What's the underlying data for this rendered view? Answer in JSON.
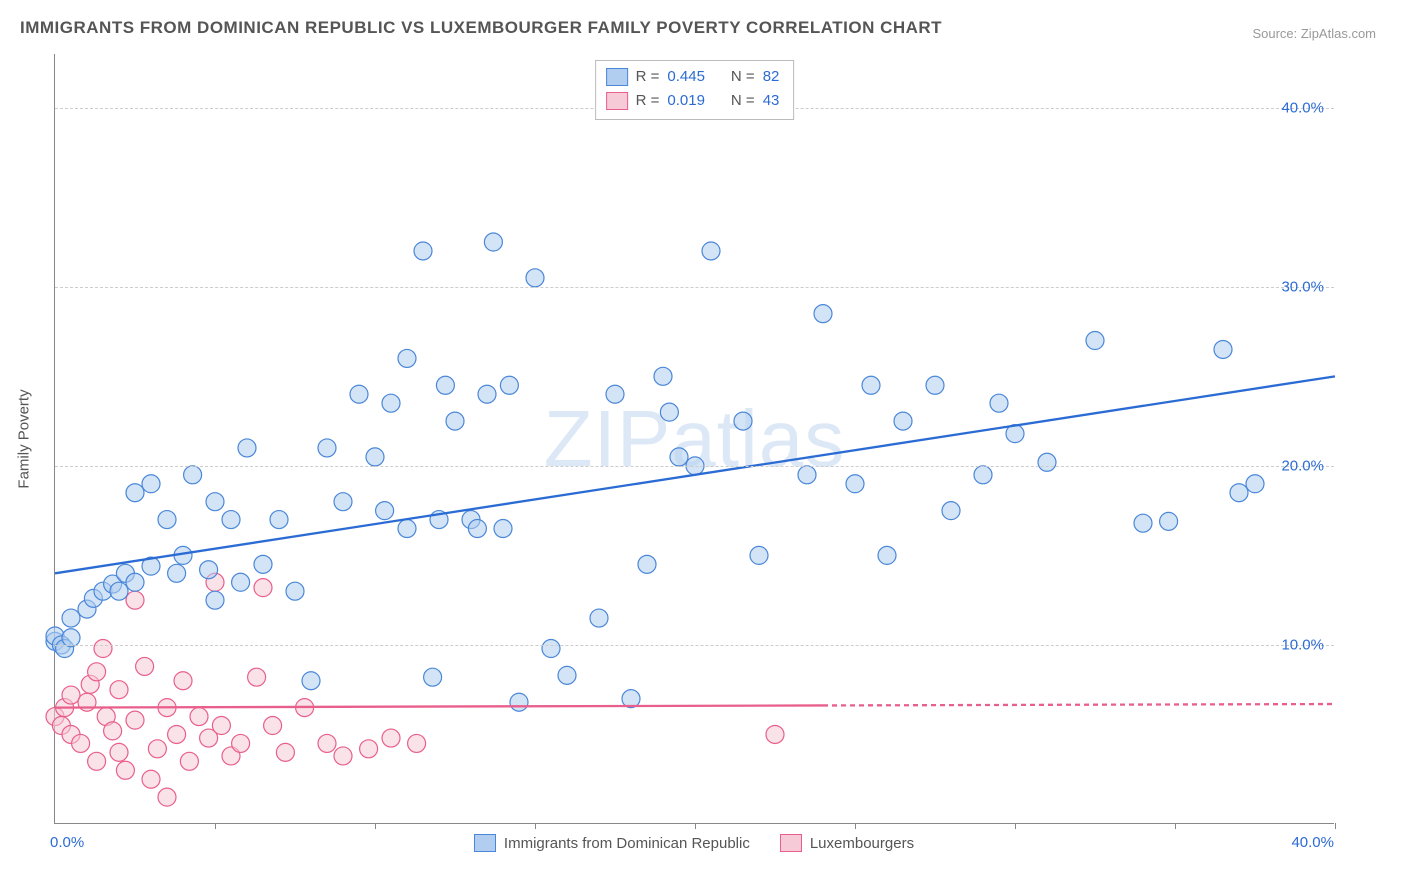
{
  "title": "IMMIGRANTS FROM DOMINICAN REPUBLIC VS LUXEMBOURGER FAMILY POVERTY CORRELATION CHART",
  "source": "Source: ZipAtlas.com",
  "watermark": "ZIPatlas",
  "y_axis_label": "Family Poverty",
  "chart": {
    "type": "scatter",
    "xlim": [
      0,
      40
    ],
    "ylim": [
      0,
      43
    ],
    "x_tick_labels": {
      "min": "0.0%",
      "max": "40.0%"
    },
    "y_ticks": [
      {
        "v": 10,
        "label": "10.0%"
      },
      {
        "v": 20,
        "label": "20.0%"
      },
      {
        "v": 30,
        "label": "30.0%"
      },
      {
        "v": 40,
        "label": "40.0%"
      }
    ],
    "grid_color": "#cccccc",
    "bg": "#ffffff",
    "marker_radius": 9,
    "marker_opacity": 0.55,
    "trend_width": 2.3,
    "x_vticks": [
      5,
      10,
      15,
      20,
      25,
      30,
      35,
      40
    ]
  },
  "series": {
    "blue": {
      "name": "Immigrants from Dominican Republic",
      "fill": "#b1cdf0",
      "stroke": "#4a87d8",
      "line_color": "#2b6bd4",
      "trend": {
        "x1": 0,
        "y1": 14,
        "x2": 40,
        "y2": 25,
        "dash_from_x": null
      },
      "r_label": "R =",
      "r_value": "0.445",
      "n_label": "N =",
      "n_value": "82",
      "points": [
        [
          0.0,
          10.2
        ],
        [
          0.0,
          10.5
        ],
        [
          0.2,
          10.0
        ],
        [
          0.3,
          9.8
        ],
        [
          0.5,
          10.4
        ],
        [
          0.5,
          11.5
        ],
        [
          1.0,
          12.0
        ],
        [
          1.2,
          12.6
        ],
        [
          1.5,
          13.0
        ],
        [
          1.8,
          13.4
        ],
        [
          2.0,
          13.0
        ],
        [
          2.2,
          14.0
        ],
        [
          2.5,
          13.5
        ],
        [
          2.5,
          18.5
        ],
        [
          3.0,
          14.4
        ],
        [
          3.0,
          19.0
        ],
        [
          3.5,
          17.0
        ],
        [
          3.8,
          14.0
        ],
        [
          4.0,
          15.0
        ],
        [
          4.3,
          19.5
        ],
        [
          5.0,
          12.5
        ],
        [
          5.0,
          18.0
        ],
        [
          5.5,
          17.0
        ],
        [
          6.0,
          21.0
        ],
        [
          6.5,
          14.5
        ],
        [
          7.0,
          17.0
        ],
        [
          8.0,
          8.0
        ],
        [
          8.5,
          21.0
        ],
        [
          9.0,
          18.0
        ],
        [
          9.5,
          24.0
        ],
        [
          10.0,
          20.5
        ],
        [
          10.3,
          17.5
        ],
        [
          10.5,
          23.5
        ],
        [
          11.0,
          26.0
        ],
        [
          11.0,
          16.5
        ],
        [
          11.5,
          32.0
        ],
        [
          11.8,
          8.2
        ],
        [
          12.0,
          17.0
        ],
        [
          12.2,
          24.5
        ],
        [
          12.5,
          22.5
        ],
        [
          13.0,
          17.0
        ],
        [
          13.2,
          16.5
        ],
        [
          13.5,
          24.0
        ],
        [
          13.7,
          32.5
        ],
        [
          14.0,
          16.5
        ],
        [
          14.2,
          24.5
        ],
        [
          14.5,
          6.8
        ],
        [
          15.0,
          30.5
        ],
        [
          15.5,
          9.8
        ],
        [
          16.0,
          8.3
        ],
        [
          17.0,
          11.5
        ],
        [
          17.5,
          24.0
        ],
        [
          18.0,
          7.0
        ],
        [
          18.5,
          14.5
        ],
        [
          19.0,
          25.0
        ],
        [
          19.2,
          23.0
        ],
        [
          19.5,
          20.5
        ],
        [
          20.0,
          20.0
        ],
        [
          20.5,
          32.0
        ],
        [
          21.5,
          22.5
        ],
        [
          22.0,
          15.0
        ],
        [
          23.5,
          19.5
        ],
        [
          24.0,
          28.5
        ],
        [
          25.0,
          19.0
        ],
        [
          25.5,
          24.5
        ],
        [
          26.0,
          15.0
        ],
        [
          26.5,
          22.5
        ],
        [
          27.5,
          24.5
        ],
        [
          28.0,
          17.5
        ],
        [
          29.0,
          19.5
        ],
        [
          29.5,
          23.5
        ],
        [
          30.0,
          21.8
        ],
        [
          31.0,
          20.2
        ],
        [
          32.5,
          27.0
        ],
        [
          34.0,
          16.8
        ],
        [
          34.8,
          16.9
        ],
        [
          36.5,
          26.5
        ],
        [
          37.0,
          18.5
        ],
        [
          37.5,
          19.0
        ],
        [
          5.8,
          13.5
        ],
        [
          7.5,
          13.0
        ],
        [
          4.8,
          14.2
        ]
      ]
    },
    "pink": {
      "name": "Luxembourgers",
      "fill": "#f6cbd7",
      "stroke": "#e95f8c",
      "line_color": "#e95f8c",
      "trend": {
        "x1": 0,
        "y1": 6.5,
        "x2": 40,
        "y2": 6.7,
        "dash_from_x": 24
      },
      "r_label": "R =",
      "r_value": "0.019",
      "n_label": "N =",
      "n_value": "43",
      "points": [
        [
          0.0,
          6.0
        ],
        [
          0.2,
          5.5
        ],
        [
          0.3,
          6.5
        ],
        [
          0.5,
          5.0
        ],
        [
          0.5,
          7.2
        ],
        [
          0.8,
          4.5
        ],
        [
          1.0,
          6.8
        ],
        [
          1.1,
          7.8
        ],
        [
          1.3,
          8.5
        ],
        [
          1.3,
          3.5
        ],
        [
          1.5,
          9.8
        ],
        [
          1.6,
          6.0
        ],
        [
          1.8,
          5.2
        ],
        [
          2.0,
          4.0
        ],
        [
          2.0,
          7.5
        ],
        [
          2.2,
          3.0
        ],
        [
          2.5,
          12.5
        ],
        [
          2.5,
          5.8
        ],
        [
          2.8,
          8.8
        ],
        [
          3.0,
          2.5
        ],
        [
          3.2,
          4.2
        ],
        [
          3.5,
          6.5
        ],
        [
          3.5,
          1.5
        ],
        [
          3.8,
          5.0
        ],
        [
          4.0,
          8.0
        ],
        [
          4.2,
          3.5
        ],
        [
          4.5,
          6.0
        ],
        [
          4.8,
          4.8
        ],
        [
          5.0,
          13.5
        ],
        [
          5.2,
          5.5
        ],
        [
          5.5,
          3.8
        ],
        [
          5.8,
          4.5
        ],
        [
          6.3,
          8.2
        ],
        [
          6.5,
          13.2
        ],
        [
          6.8,
          5.5
        ],
        [
          7.2,
          4.0
        ],
        [
          7.8,
          6.5
        ],
        [
          8.5,
          4.5
        ],
        [
          9.0,
          3.8
        ],
        [
          9.8,
          4.2
        ],
        [
          10.5,
          4.8
        ],
        [
          11.3,
          4.5
        ],
        [
          22.5,
          5.0
        ]
      ]
    }
  },
  "legend_bottom": [
    {
      "swatch": "blue",
      "label": "Immigrants from Dominican Republic"
    },
    {
      "swatch": "pink",
      "label": "Luxembourgers"
    }
  ]
}
